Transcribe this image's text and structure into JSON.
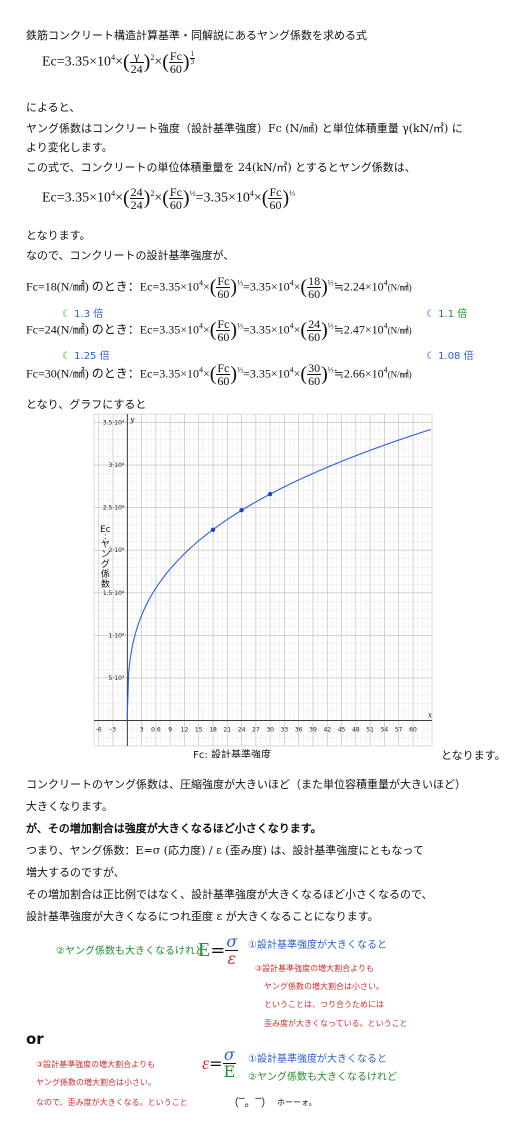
{
  "title": "鉄筋コンクリート構造計算基準・同解説にあるヤング係数を求める式",
  "formula1": {
    "lhs": "Ec=3.35×10",
    "exp": "4",
    "gamma": "γ",
    "d24": "24",
    "fc": "Fc",
    "d60": "60",
    "sq": "2",
    "third_n": "1",
    "third_d": "3"
  },
  "text1": [
    "によると、",
    "ヤング係数はコンクリート強度（設計基準強度）Fc (N/㎟) と単位体積重量 γ(kN/㎥) に",
    "より変化します。",
    "この式で、コンクリートの単位体積重量を 24(kN/㎥) とするとヤング係数は、"
  ],
  "formula2": {
    "a": "Ec=3.35×10",
    "b": "=3.35×10"
  },
  "text2": [
    "となります。",
    "なので、コンクリートの設計基準強度が、"
  ],
  "rows": [
    {
      "cond": "Fc=18(N/㎟) のとき：",
      "val": "18",
      "result": "≒2.24×10",
      "unit": "(N/㎟)"
    },
    {
      "cond": "Fc=24(N/㎟) のとき：",
      "val": "24",
      "result": "≒2.47×10",
      "unit": "(N/㎟)"
    },
    {
      "cond": "Fc=30(N/㎟) のとき：",
      "val": "30",
      "result": "≒2.66×10",
      "unit": "(N/㎟)"
    }
  ],
  "ratios": {
    "left1": "1.3 倍",
    "right1": "1.1 倍",
    "left2": "1.25 倍",
    "right2": "1.08 倍"
  },
  "text3": "となり、グラフにすると",
  "chart_data": {
    "type": "line",
    "xlabel": "Fc: 設計基準強度",
    "ylabel": "Ec\n:\nヤング係数",
    "x_axis_name": "x",
    "y_axis_name": "y",
    "xlim": [
      -7,
      64
    ],
    "ylim": [
      -3000,
      36000
    ],
    "xticks": [
      -6,
      -3,
      3,
      6,
      9,
      12,
      15,
      18,
      21,
      24,
      27,
      30,
      33,
      36,
      39,
      42,
      45,
      48,
      51,
      54,
      57,
      60
    ],
    "xtick_labels": [
      "-6",
      "-3",
      "3",
      "0 6",
      "9",
      "12",
      "15",
      "18",
      "21",
      "24",
      "27",
      "30",
      "33",
      "36",
      "39",
      "42",
      "45",
      "48",
      "51",
      "54",
      "57",
      "60"
    ],
    "yticks": [
      5000,
      10000,
      15000,
      20000,
      25000,
      30000,
      35000
    ],
    "ytick_labels": [
      "5·10³",
      "1·10⁴",
      "1.5·10⁴",
      "2·10⁴",
      "2.5·10⁴",
      "3·10⁴",
      "3.5·10⁴"
    ],
    "function": "Ec = 3.35e4 * (Fc/60)^(1/3)",
    "points": [
      {
        "x": 18,
        "y": 22400
      },
      {
        "x": 24,
        "y": 24700
      },
      {
        "x": 30,
        "y": 26600
      }
    ],
    "line_color": "#2a5fe0",
    "grid": true
  },
  "chart_caption": "となります。",
  "text4": [
    "コンクリートのヤング係数は、圧縮強度が大きいほど（また単位容積重量が大きいほど）",
    "大きくなります。",
    "が、その増加割合は強度が大きくなるほど小さくなります。",
    "つまり、ヤング係数：E=σ (応力度) / ε (歪み度) は、設計基準強度にともなって",
    "増大するのですが、",
    "その増加割合は正比例ではなく、設計基準強度が大きくなるほど小さくなるので、",
    "設計基準強度が大きくなるにつれ歪度 ε が大きくなることになります。"
  ],
  "note1": {
    "green": "②ヤング係数も大きくなるけれど",
    "E": "E",
    "sigma": "σ",
    "eps": "ε",
    "blue": "①設計基準強度が大きくなると",
    "red": [
      "③設計基準強度の増大割合よりも",
      "ヤング係数の増大割合は小さい。",
      "ということは、つり合うためには",
      "歪み度が大きくなっている。ということ"
    ]
  },
  "or": "or",
  "note2": {
    "red": [
      "③設計基準強度の増大割合よりも",
      "ヤング係数の増大割合は小さい。",
      "なので、歪み度が大きくなる。ということ"
    ],
    "eps": "ε",
    "sigma": "σ",
    "E": "E",
    "blue": "①設計基準強度が大きくなると",
    "green": "②ヤング係数も大きくなるけれど",
    "face": "（‾。‾）",
    "hoo": "ホーーォ。"
  }
}
